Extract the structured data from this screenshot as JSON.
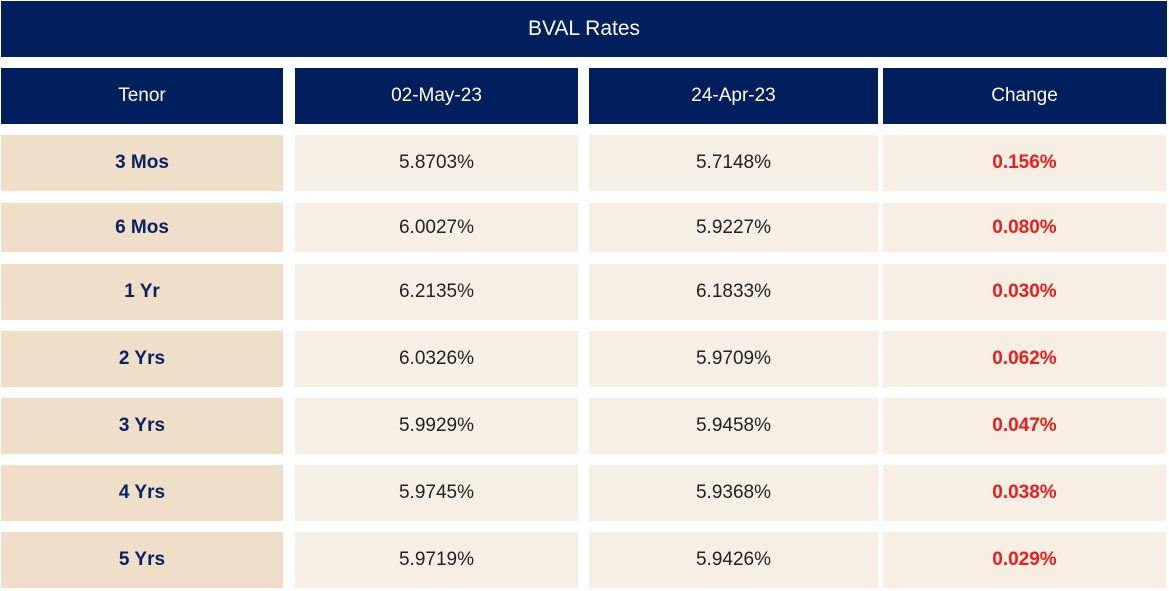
{
  "title": "BVAL Rates",
  "headers": [
    "Tenor",
    "02-May-23",
    "24-Apr-23",
    "Change"
  ],
  "rows": [
    {
      "tenor": "3 Mos",
      "current": "5.8703%",
      "previous": "5.7148%",
      "change": "0.156%"
    },
    {
      "tenor": "6 Mos",
      "current": "6.0027%",
      "previous": "5.9227%",
      "change": "0.080%"
    },
    {
      "tenor": "1 Yr",
      "current": "6.2135%",
      "previous": "6.1833%",
      "change": "0.030%"
    },
    {
      "tenor": "2 Yrs",
      "current": "6.0326%",
      "previous": "5.9709%",
      "change": "0.062%"
    },
    {
      "tenor": "3 Yrs",
      "current": "5.9929%",
      "previous": "5.9458%",
      "change": "0.047%"
    },
    {
      "tenor": "4 Yrs",
      "current": "5.9745%",
      "previous": "5.9368%",
      "change": "0.038%"
    },
    {
      "tenor": "5 Yrs",
      "current": "5.9719%",
      "previous": "5.9426%",
      "change": "0.029%"
    }
  ],
  "colors": {
    "header_bg": "#001f5c",
    "header_text": "#ffffff",
    "tenor_bg": "#efdfc8",
    "tenor_text": "#0b2166",
    "value_bg": "#f7efe3",
    "change_text": "#ee1c1c"
  }
}
